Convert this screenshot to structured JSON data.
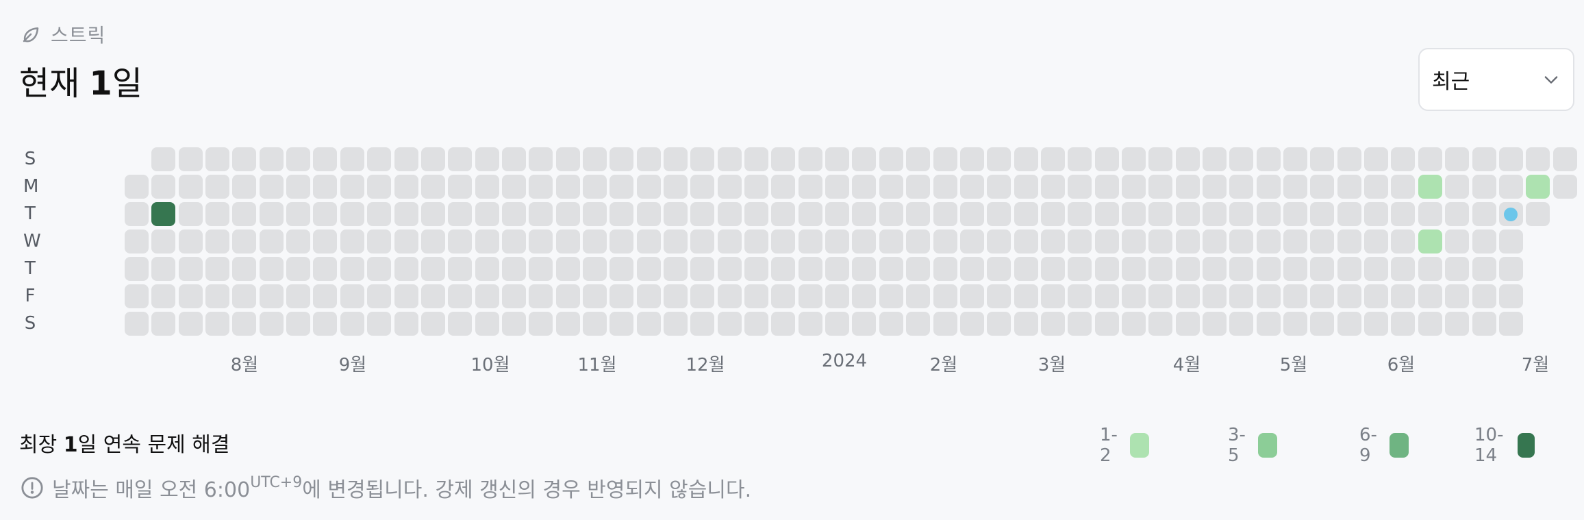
{
  "streak": {
    "label": "스트릭",
    "current_prefix": "현재",
    "current_days": "1",
    "current_suffix": "일",
    "period_select": {
      "value": "최근"
    },
    "best_prefix": "최장",
    "best_days": "1",
    "best_suffix": "일 연속 문제 해결",
    "notice_pre": "날짜는 매일 오전 6:00",
    "notice_tz": "UTC+9",
    "notice_post": "에 변경됩니다. 강제 갱신의 경우 반영되지 않습니다."
  },
  "calendar": {
    "day_labels": [
      "S",
      "M",
      "T",
      "W",
      "T",
      "F",
      "S"
    ],
    "month_labels": [
      "8월",
      "9월",
      "10월",
      "11월",
      "12월",
      "2024",
      "2월",
      "3월",
      "4월",
      "5월",
      "6월",
      "7월"
    ],
    "weeks": 54,
    "activity": [
      {
        "week": 1,
        "day": 2,
        "level": 4
      },
      {
        "week": 48,
        "day": 1,
        "level": 1
      },
      {
        "week": 48,
        "day": 3,
        "level": 1
      },
      {
        "week": 52,
        "day": 1,
        "level": 1
      }
    ],
    "today": {
      "week": 51,
      "day": 2
    },
    "colors": {
      "empty": "#dfe0e2",
      "level1": "#ade2b0",
      "level2": "#8ccd97",
      "level3": "#6fb482",
      "level4": "#367650",
      "today": "#6cc6ea"
    }
  },
  "legend": [
    {
      "label": "1-2",
      "color": "#ade2b0"
    },
    {
      "label": "3-5",
      "color": "#8ccd97"
    },
    {
      "label": "6-9",
      "color": "#6fb482"
    },
    {
      "label": "10-14",
      "color": "#367650"
    }
  ],
  "icons": {
    "streak": "leaf-icon",
    "select": "chevron-down-icon",
    "notice": "info-circle-icon"
  }
}
